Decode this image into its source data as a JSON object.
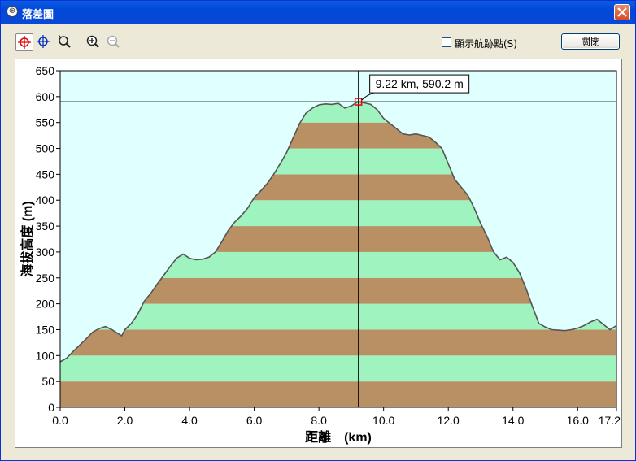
{
  "window": {
    "title": "落差圖",
    "colors": {
      "titlebar": "#0a4fd8",
      "plot_background": "#e0ffff",
      "band_green": "#9ff3be",
      "band_brown": "#b89063",
      "profile_line": "#555555"
    }
  },
  "toolbar": {
    "tools": [
      {
        "name": "crosshair-red-tool",
        "icon": "crosshair-red-icon"
      },
      {
        "name": "crosshair-blue-tool",
        "icon": "crosshair-blue-icon"
      },
      {
        "name": "magnifier-tool",
        "icon": "magnifier-icon"
      },
      {
        "name": "zoom-in-tool",
        "icon": "zoom-in-icon"
      },
      {
        "name": "zoom-out-tool",
        "icon": "zoom-out-icon"
      }
    ],
    "show_trackpoints_label": "顯示航跡點(S)",
    "show_trackpoints_checked": false,
    "close_label": "關閉"
  },
  "chart_data": {
    "type": "area",
    "xlabel": "距離　(km)",
    "ylabel": "海拔高度 (m)",
    "xlim": [
      0,
      17.2
    ],
    "ylim": [
      0,
      650
    ],
    "xticks": [
      0,
      2,
      4,
      6,
      8,
      10,
      12,
      14,
      16,
      17.2
    ],
    "xtick_labels": [
      "0.0",
      "2.0",
      "4.0",
      "6.0",
      "8.0",
      "10.0",
      "12.0",
      "14.0",
      "16.0",
      "17.2"
    ],
    "yticks": [
      0,
      50,
      100,
      150,
      200,
      250,
      300,
      350,
      400,
      450,
      500,
      550,
      600,
      650
    ],
    "ytick_labels": [
      "0",
      "50",
      "100",
      "150",
      "200",
      "250",
      "300",
      "350",
      "400",
      "450",
      "500",
      "550",
      "600",
      "650"
    ],
    "band_step": 50,
    "grid": false,
    "cursor": {
      "x": 9.22,
      "y": 590.2,
      "label": "9.22 km, 590.2 m"
    },
    "x": [
      0,
      0.2,
      0.4,
      0.6,
      0.8,
      1.0,
      1.2,
      1.4,
      1.6,
      1.8,
      1.9,
      2.0,
      2.2,
      2.4,
      2.6,
      2.8,
      3.0,
      3.2,
      3.4,
      3.6,
      3.8,
      4.0,
      4.2,
      4.4,
      4.6,
      4.8,
      5.0,
      5.2,
      5.4,
      5.6,
      5.8,
      6.0,
      6.2,
      6.4,
      6.6,
      6.8,
      7.0,
      7.2,
      7.4,
      7.6,
      7.8,
      8.0,
      8.2,
      8.4,
      8.6,
      8.8,
      9.0,
      9.2,
      9.4,
      9.6,
      9.8,
      10.0,
      10.2,
      10.4,
      10.6,
      10.8,
      11.0,
      11.2,
      11.4,
      11.6,
      11.8,
      12.0,
      12.2,
      12.4,
      12.6,
      12.8,
      13.0,
      13.2,
      13.4,
      13.6,
      13.8,
      14.0,
      14.2,
      14.4,
      14.6,
      14.8,
      15.0,
      15.2,
      15.4,
      15.6,
      15.8,
      16.0,
      16.2,
      16.4,
      16.6,
      16.8,
      17.0,
      17.2
    ],
    "y": [
      88,
      95,
      108,
      120,
      132,
      145,
      152,
      156,
      150,
      142,
      138,
      150,
      162,
      180,
      205,
      220,
      238,
      255,
      272,
      288,
      296,
      288,
      285,
      286,
      290,
      300,
      320,
      342,
      358,
      370,
      385,
      405,
      418,
      432,
      450,
      470,
      492,
      520,
      548,
      568,
      578,
      584,
      586,
      585,
      587,
      578,
      582,
      590,
      588,
      585,
      575,
      558,
      548,
      538,
      528,
      526,
      528,
      525,
      522,
      512,
      500,
      470,
      440,
      425,
      410,
      385,
      355,
      330,
      300,
      285,
      290,
      280,
      260,
      230,
      195,
      162,
      155,
      150,
      149,
      148,
      150,
      153,
      158,
      165,
      170,
      160,
      150,
      158
    ]
  }
}
